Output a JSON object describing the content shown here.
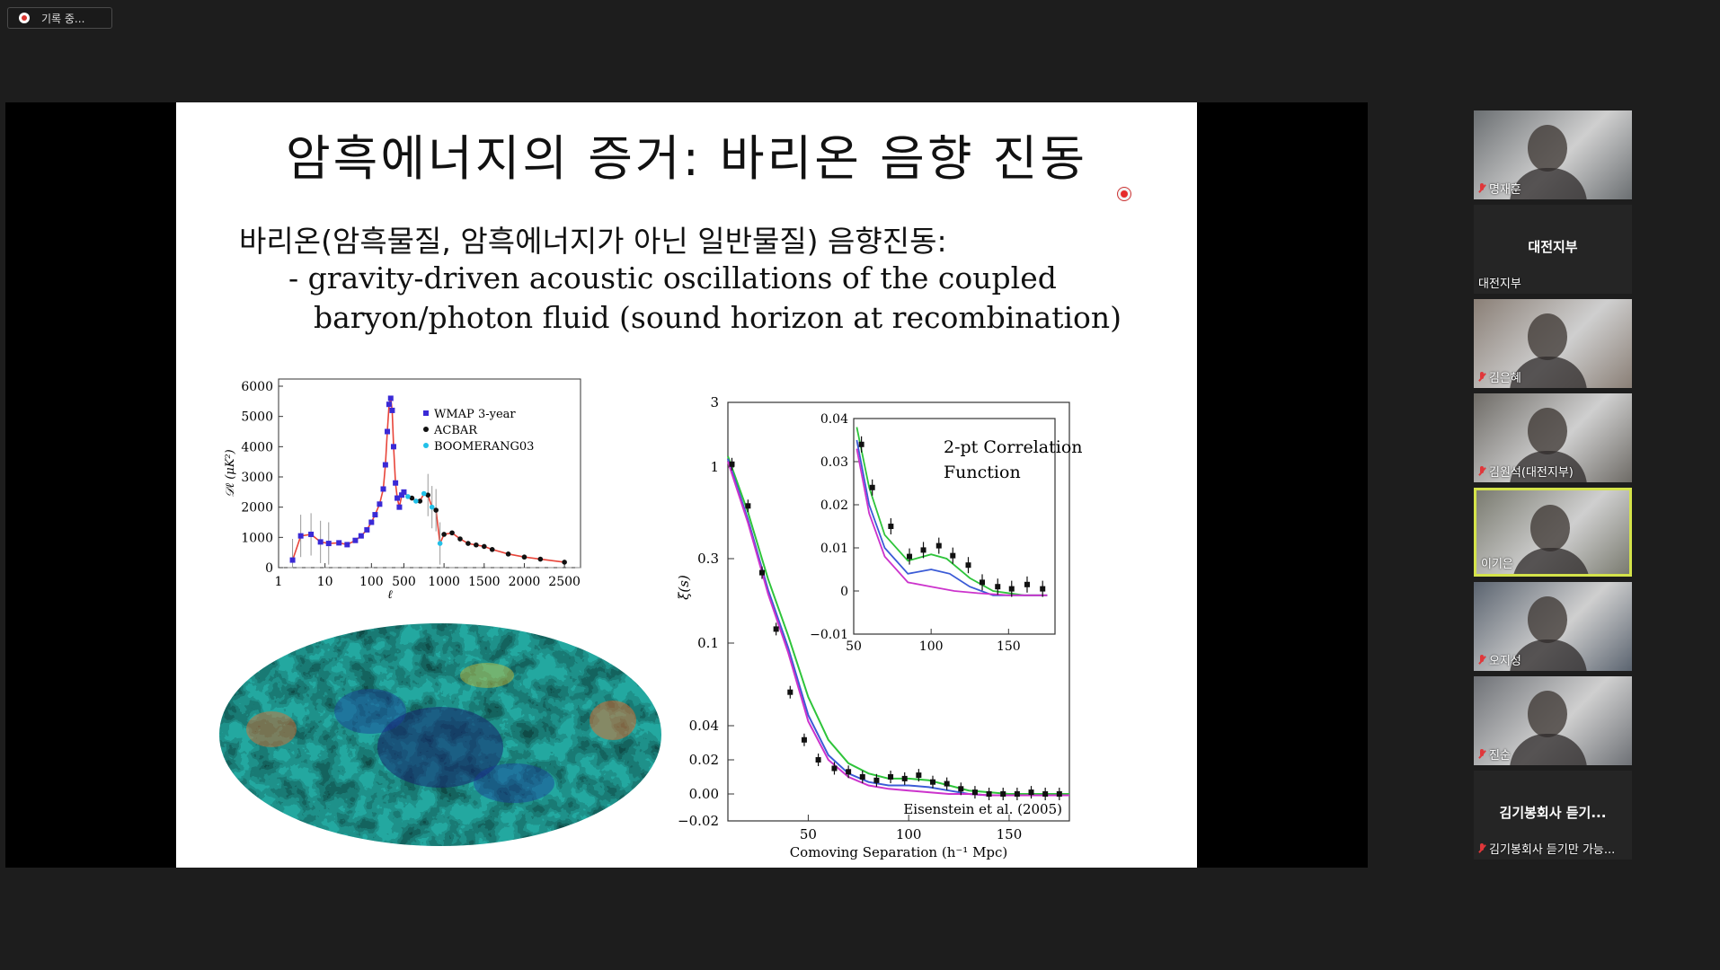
{
  "recording": {
    "label": "기록 중..."
  },
  "slide": {
    "title": "암흑에너지의 증거: 바리온 음향 진동",
    "line1": "바리온(암흑물질, 암흑에너지가 아닌 일반물질) 음향진동:",
    "line2": "- gravity-driven acoustic oscillations of the coupled",
    "line3": "baryon/photon fluid (sound horizon at recombination)"
  },
  "chart_data": [
    {
      "type": "scatter",
      "title": "",
      "xlabel": "ℓ",
      "ylabel": "𝒟ℓ (μK²)",
      "x_ticks": [
        "1",
        "10",
        "100",
        "500",
        "1000",
        "1500",
        "2000",
        "2500"
      ],
      "y_ticks": [
        "0",
        "1000",
        "2000",
        "3000",
        "4000",
        "5000",
        "6000"
      ],
      "ylim": [
        0,
        6000
      ],
      "series": [
        {
          "name": "WMAP 3-year",
          "color": "#3a2ad6",
          "x": [
            2,
            3,
            5,
            8,
            12,
            20,
            30,
            45,
            60,
            80,
            100,
            120,
            150,
            180,
            200,
            220,
            240,
            260,
            280,
            300,
            330,
            360,
            400,
            450,
            500
          ],
          "y": [
            250,
            1050,
            1100,
            850,
            800,
            820,
            760,
            900,
            1050,
            1250,
            1500,
            1750,
            2100,
            2600,
            3400,
            4500,
            5400,
            5600,
            5200,
            4000,
            2800,
            2300,
            2000,
            2400,
            2500
          ]
        },
        {
          "name": "ACBAR",
          "color": "#111111",
          "x": [
            600,
            700,
            800,
            900,
            1000,
            1100,
            1200,
            1300,
            1400,
            1500,
            1600,
            1800,
            2000,
            2200,
            2500
          ],
          "y": [
            2300,
            2200,
            2400,
            1900,
            1100,
            1150,
            950,
            800,
            750,
            700,
            600,
            450,
            350,
            280,
            180
          ]
        },
        {
          "name": "BOOMERANG03",
          "color": "#22c0e8",
          "x": [
            550,
            650,
            750,
            850,
            950
          ],
          "y": [
            2350,
            2200,
            2450,
            2000,
            800
          ]
        }
      ],
      "grid": false,
      "legend": "top-right"
    },
    {
      "type": "line",
      "title": "",
      "xlabel": "Comoving Separation (h⁻¹ Mpc)",
      "ylabel": "ξ(s)",
      "x_ticks": [
        "50",
        "100",
        "150"
      ],
      "y_ticks": [
        "3",
        "1",
        "0.3",
        "0.1",
        "0.04",
        "0.02",
        "0.00",
        "−0.02"
      ],
      "xlim": [
        10,
        180
      ],
      "annotation": "Eisenstein et al. (2005)",
      "series": [
        {
          "name": "",
          "color": "#2ec43a",
          "x": [
            10,
            20,
            30,
            40,
            50,
            60,
            70,
            80,
            90,
            100,
            110,
            120,
            130,
            140,
            150,
            160,
            170,
            180
          ],
          "y": [
            1.2,
            0.55,
            0.23,
            0.11,
            0.055,
            0.03,
            0.018,
            0.012,
            0.009,
            0.009,
            0.008,
            0.005,
            0.002,
            0.001,
            0.0,
            0.0,
            0.0,
            0.0
          ]
        },
        {
          "name": "",
          "color": "#3b5bd6",
          "x": [
            10,
            20,
            30,
            40,
            50,
            60,
            70,
            80,
            90,
            100,
            110,
            120,
            130,
            140,
            150,
            160,
            170,
            180
          ],
          "y": [
            1.15,
            0.5,
            0.2,
            0.095,
            0.045,
            0.022,
            0.012,
            0.007,
            0.005,
            0.005,
            0.004,
            0.002,
            0.0,
            -0.001,
            -0.001,
            -0.001,
            -0.001,
            -0.001
          ]
        },
        {
          "name": "",
          "color": "#cc33cc",
          "x": [
            10,
            20,
            30,
            40,
            50,
            60,
            70,
            80,
            90,
            100,
            110,
            120,
            130,
            140,
            150,
            160,
            170,
            180
          ],
          "y": [
            1.1,
            0.48,
            0.19,
            0.09,
            0.042,
            0.02,
            0.01,
            0.005,
            0.003,
            0.002,
            0.001,
            0.0,
            0.0,
            -0.001,
            -0.001,
            -0.001,
            -0.001,
            -0.001
          ]
        },
        {
          "name": "",
          "color": "#111111",
          "x": [
            12,
            20,
            27,
            34,
            41,
            48,
            55,
            63,
            70,
            77,
            84,
            91,
            98,
            105,
            112,
            119,
            126,
            133,
            140,
            147,
            154,
            161,
            168,
            175
          ],
          "y": [
            1.05,
            0.6,
            0.25,
            0.12,
            0.058,
            0.03,
            0.02,
            0.015,
            0.013,
            0.01,
            0.008,
            0.01,
            0.009,
            0.011,
            0.007,
            0.006,
            0.003,
            0.001,
            0.0,
            0.0,
            0.0,
            0.001,
            0.0,
            0.0
          ]
        }
      ]
    },
    {
      "type": "line",
      "title": "2-pt Correlation Function",
      "x_ticks": [
        "50",
        "100",
        "150"
      ],
      "y_ticks": [
        "0.04",
        "0.03",
        "0.02",
        "0.01",
        "0",
        "−0.01"
      ],
      "xlim": [
        50,
        180
      ],
      "ylim": [
        -0.01,
        0.04
      ]
    }
  ],
  "participants": [
    {
      "name": "명재훈",
      "muted": true,
      "video": true
    },
    {
      "name": "대전지부",
      "muted": false,
      "video": false,
      "display": "대전지부"
    },
    {
      "name": "김은혜",
      "muted": true,
      "video": true
    },
    {
      "name": "김원석(대전지부)",
      "muted": true,
      "video": true
    },
    {
      "name": "이기은",
      "muted": false,
      "video": true,
      "active": true
    },
    {
      "name": "오지성",
      "muted": true,
      "video": true
    },
    {
      "name": "진순",
      "muted": true,
      "video": true
    },
    {
      "name": "김기봉회사 듣기만 가능...",
      "muted": true,
      "video": false,
      "display": "김기봉회사 듣기..."
    }
  ],
  "colors": {
    "background": "#1d1d1d",
    "active_border": "#d4e34a",
    "muted_icon": "#e0373a"
  }
}
